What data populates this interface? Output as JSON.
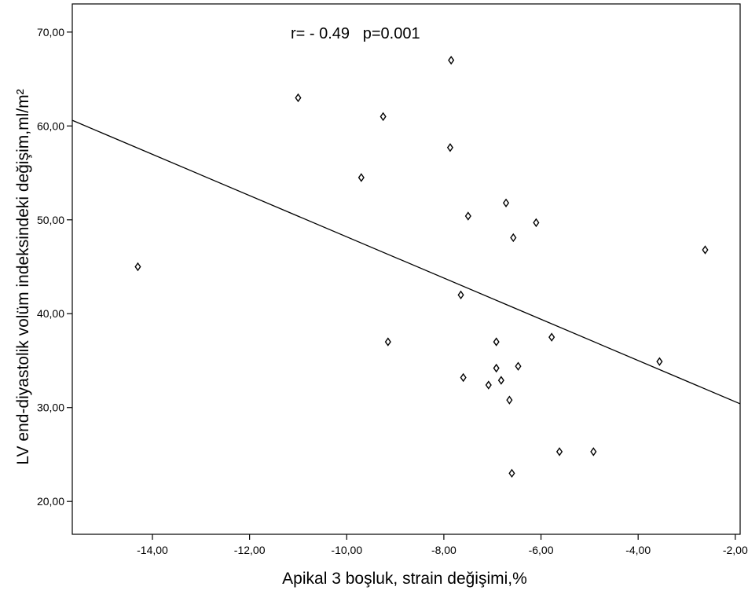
{
  "chart_data": {
    "type": "scatter",
    "title": "",
    "annotation": "r= - 0.49   p=0.001",
    "xlabel": "Apikal 3 boşluk, strain değişimi,%",
    "ylabel": "LV end-diyastolik volüm indeksindeki değişim,ml/m²",
    "xlim": [
      -15.65,
      -1.9
    ],
    "ylim": [
      16.5,
      73.0
    ],
    "x_ticks": [
      -14,
      -12,
      -10,
      -8,
      -6,
      -4,
      -2
    ],
    "x_tick_labels": [
      "-14,00",
      "-12,00",
      "-10,00",
      "-8,00",
      "-6,00",
      "-4,00",
      "-2,00"
    ],
    "y_ticks": [
      20,
      30,
      40,
      50,
      60,
      70
    ],
    "y_tick_labels": [
      "20,00",
      "30,00",
      "40,00",
      "50,00",
      "60,00",
      "70,00"
    ],
    "grid": false,
    "marker": "diamond",
    "points": [
      {
        "x": -14.3,
        "y": 45.0
      },
      {
        "x": -11.0,
        "y": 63.0
      },
      {
        "x": -9.7,
        "y": 54.5
      },
      {
        "x": -9.25,
        "y": 61.0
      },
      {
        "x": -9.15,
        "y": 37.0
      },
      {
        "x": -7.85,
        "y": 67.0
      },
      {
        "x": -7.87,
        "y": 57.7
      },
      {
        "x": -7.5,
        "y": 50.4
      },
      {
        "x": -7.65,
        "y": 42.0
      },
      {
        "x": -7.6,
        "y": 33.2
      },
      {
        "x": -7.08,
        "y": 32.4
      },
      {
        "x": -6.92,
        "y": 37.0
      },
      {
        "x": -6.92,
        "y": 34.2
      },
      {
        "x": -6.82,
        "y": 32.9
      },
      {
        "x": -6.72,
        "y": 51.8
      },
      {
        "x": -6.65,
        "y": 30.8
      },
      {
        "x": -6.57,
        "y": 48.1
      },
      {
        "x": -6.6,
        "y": 23.0
      },
      {
        "x": -6.47,
        "y": 34.4
      },
      {
        "x": -6.1,
        "y": 49.7
      },
      {
        "x": -5.78,
        "y": 37.5
      },
      {
        "x": -5.62,
        "y": 25.3
      },
      {
        "x": -4.92,
        "y": 25.3
      },
      {
        "x": -3.56,
        "y": 34.9
      },
      {
        "x": -2.62,
        "y": 46.8
      }
    ],
    "fit_line": {
      "x": [
        -15.65,
        -1.9
      ],
      "y": [
        60.6,
        30.4
      ]
    }
  }
}
